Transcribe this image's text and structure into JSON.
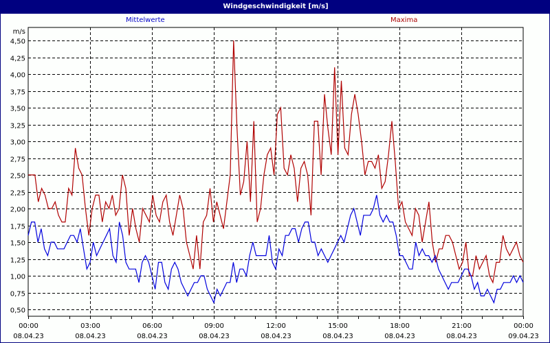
{
  "window": {
    "title": "Windgeschwindigkeit [m/s]"
  },
  "colors": {
    "titlebar": "#000080",
    "mean": "#0000dd",
    "max": "#b00000",
    "grid": "#000000"
  },
  "chart_data": {
    "type": "line",
    "title": "Windgeschwindigkeit [m/s]",
    "ylabel": "m/s",
    "xlabel": "",
    "ylim": [
      0.4,
      4.6
    ],
    "yticks": [
      "0,50",
      "0,75",
      "1,00",
      "1,25",
      "1,50",
      "1,75",
      "2,00",
      "2,25",
      "2,50",
      "2,75",
      "3,00",
      "3,25",
      "3,50",
      "3,75",
      "4,00",
      "4,25",
      "4,50"
    ],
    "ytick_values": [
      0.5,
      0.75,
      1.0,
      1.25,
      1.5,
      1.75,
      2.0,
      2.25,
      2.5,
      2.75,
      3.0,
      3.25,
      3.5,
      3.75,
      4.0,
      4.25,
      4.5
    ],
    "xticks": [
      {
        "time": "00:00",
        "date": "08.04.23"
      },
      {
        "time": "03:00",
        "date": "08.04.23"
      },
      {
        "time": "06:00",
        "date": "08.04.23"
      },
      {
        "time": "09:00",
        "date": "08.04.23"
      },
      {
        "time": "12:00",
        "date": "08.04.23"
      },
      {
        "time": "15:00",
        "date": "08.04.23"
      },
      {
        "time": "18:00",
        "date": "08.04.23"
      },
      {
        "time": "21:00",
        "date": "08.04.23"
      },
      {
        "time": "00:00",
        "date": "09.04.23"
      }
    ],
    "x_interval_minutes": 10,
    "grid": true,
    "legend_position": "top",
    "series": [
      {
        "name": "Mittelwerte",
        "color": "#0000dd",
        "values": [
          1.6,
          1.8,
          1.8,
          1.5,
          1.7,
          1.4,
          1.3,
          1.5,
          1.5,
          1.4,
          1.4,
          1.4,
          1.5,
          1.6,
          1.6,
          1.5,
          1.7,
          1.4,
          1.1,
          1.2,
          1.5,
          1.3,
          1.4,
          1.5,
          1.6,
          1.7,
          1.3,
          1.2,
          1.8,
          1.6,
          1.2,
          1.1,
          1.1,
          1.1,
          0.9,
          1.2,
          1.3,
          1.2,
          1.0,
          0.8,
          1.2,
          1.2,
          0.9,
          0.8,
          1.1,
          1.2,
          1.1,
          0.9,
          0.8,
          0.7,
          0.8,
          0.9,
          0.9,
          1.0,
          1.0,
          0.8,
          0.7,
          0.6,
          0.8,
          0.7,
          0.8,
          0.9,
          0.9,
          1.2,
          0.9,
          1.1,
          1.1,
          1.0,
          1.3,
          1.5,
          1.3,
          1.3,
          1.3,
          1.3,
          1.6,
          1.2,
          1.1,
          1.4,
          1.3,
          1.6,
          1.6,
          1.7,
          1.7,
          1.5,
          1.7,
          1.8,
          1.8,
          1.5,
          1.5,
          1.3,
          1.4,
          1.3,
          1.2,
          1.3,
          1.4,
          1.5,
          1.6,
          1.5,
          1.7,
          1.9,
          2.0,
          1.8,
          1.6,
          1.9,
          1.9,
          1.9,
          2.0,
          2.2,
          1.9,
          1.8,
          1.9,
          1.8,
          1.8,
          1.6,
          1.3,
          1.3,
          1.2,
          1.1,
          1.1,
          1.5,
          1.3,
          1.4,
          1.3,
          1.3,
          1.2,
          1.3,
          1.1,
          1.0,
          0.9,
          0.8,
          0.9,
          0.9,
          0.9,
          1.0,
          1.1,
          1.1,
          1.0,
          0.8,
          0.9,
          0.7,
          0.7,
          0.8,
          0.7,
          0.6,
          0.8,
          0.8,
          0.9,
          0.9,
          0.9,
          1.0,
          0.9,
          1.0,
          0.9
        ]
      },
      {
        "name": "Maxima",
        "color": "#b00000",
        "values": [
          2.5,
          2.5,
          2.5,
          2.1,
          2.3,
          2.2,
          2.0,
          2.0,
          2.1,
          1.9,
          1.8,
          1.8,
          2.3,
          2.2,
          2.9,
          2.6,
          2.5,
          2.0,
          1.6,
          2.0,
          2.2,
          2.2,
          1.8,
          2.1,
          2.0,
          2.2,
          1.9,
          2.0,
          2.5,
          2.3,
          1.6,
          2.0,
          1.7,
          1.5,
          2.0,
          1.9,
          1.8,
          2.2,
          1.9,
          1.8,
          2.1,
          2.2,
          1.8,
          1.6,
          1.9,
          2.2,
          2.0,
          1.5,
          1.3,
          1.1,
          1.6,
          1.1,
          1.8,
          1.9,
          2.3,
          1.8,
          2.1,
          1.9,
          1.7,
          2.1,
          2.5,
          4.5,
          3.2,
          2.2,
          2.4,
          3.0,
          2.1,
          3.3,
          1.8,
          2.0,
          2.5,
          2.8,
          2.9,
          2.5,
          3.4,
          3.5,
          2.6,
          2.5,
          2.8,
          2.6,
          2.1,
          2.6,
          2.7,
          2.5,
          1.9,
          3.3,
          3.3,
          2.5,
          3.7,
          3.2,
          2.8,
          4.1,
          2.8,
          3.9,
          2.9,
          2.8,
          3.4,
          3.7,
          3.4,
          3.0,
          2.5,
          2.7,
          2.7,
          2.6,
          2.8,
          2.3,
          2.4,
          2.8,
          3.3,
          2.7,
          2.0,
          2.1,
          1.8,
          1.7,
          1.6,
          2.0,
          1.9,
          1.5,
          1.8,
          2.1,
          1.5,
          1.2,
          1.4,
          1.4,
          1.6,
          1.6,
          1.5,
          1.3,
          1.1,
          1.2,
          1.5,
          1.0,
          1.0,
          1.3,
          1.1,
          1.2,
          1.3,
          1.0,
          0.9,
          1.2,
          1.2,
          1.6,
          1.4,
          1.3,
          1.4,
          1.5,
          1.3,
          1.2
        ]
      }
    ]
  },
  "legend": {
    "mean_label": "Mittelwerte",
    "max_label": "Maxima"
  }
}
